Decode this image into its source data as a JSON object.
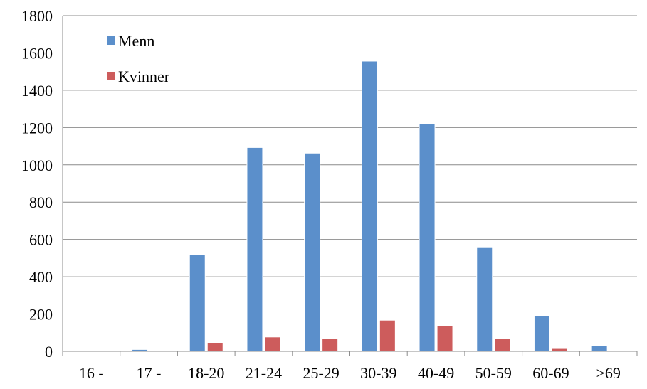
{
  "chart_data": {
    "type": "bar",
    "categories": [
      "16 -",
      "17 -",
      "18-20",
      "21-24",
      "25-29",
      "30-39",
      "40-49",
      "50-59",
      "60-69",
      ">69"
    ],
    "series": [
      {
        "name": "Menn",
        "color": "#5B8FCB",
        "values": [
          2,
          10,
          518,
          1093,
          1063,
          1556,
          1220,
          556,
          190,
          32
        ]
      },
      {
        "name": "Kvinner",
        "color": "#CD5C5C",
        "values": [
          0,
          0,
          45,
          77,
          69,
          167,
          137,
          70,
          15,
          0
        ]
      }
    ],
    "ylim": [
      0,
      1800
    ],
    "yticks": [
      0,
      200,
      400,
      600,
      800,
      1000,
      1200,
      1400,
      1600,
      1800
    ],
    "grid": true,
    "legend": "top-left",
    "title": "",
    "xlabel": "",
    "ylabel": ""
  }
}
